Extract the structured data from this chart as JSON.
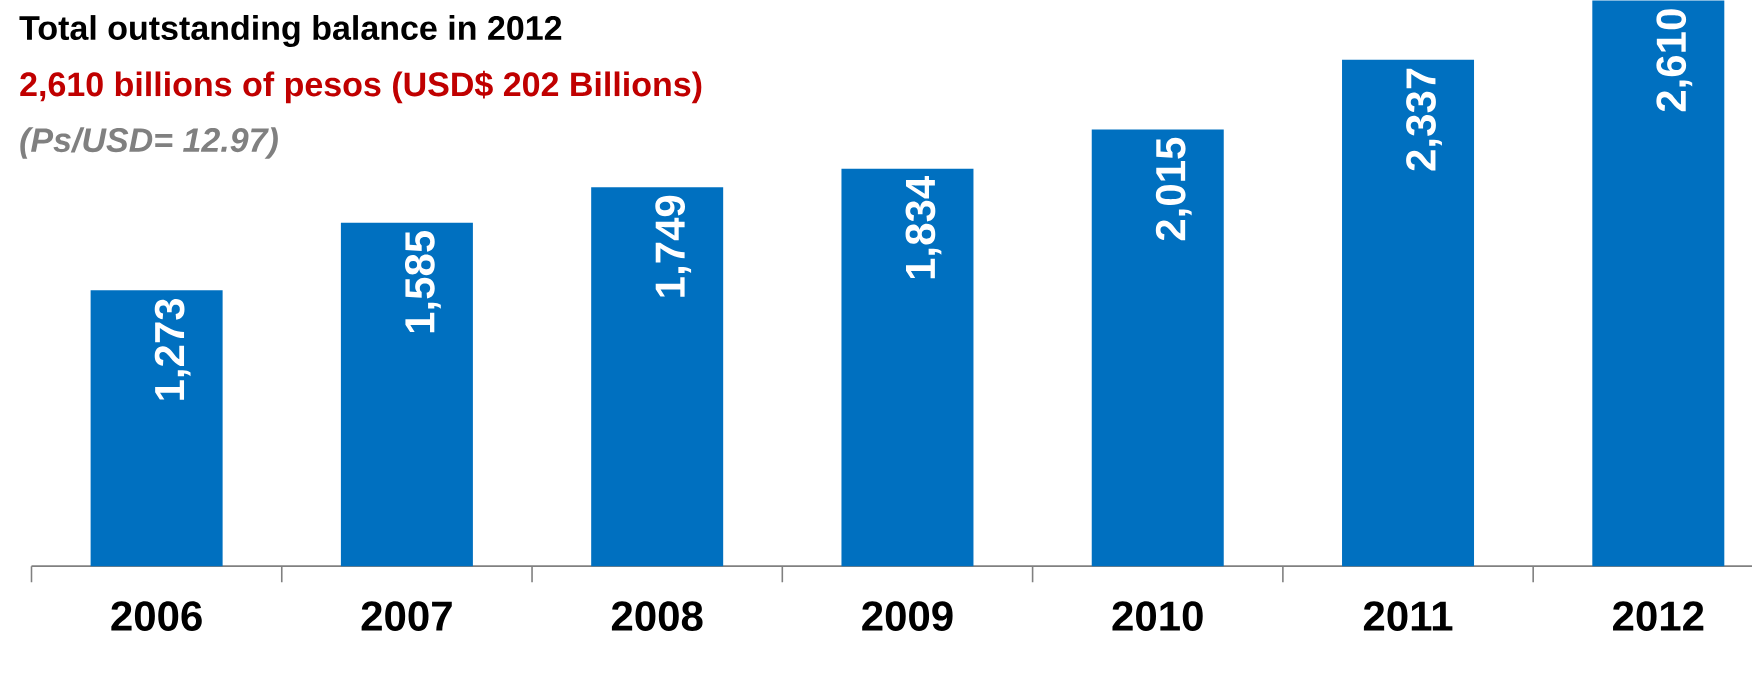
{
  "chart_data": {
    "type": "bar",
    "title": "Total outstanding balance in 2012",
    "subtitle": "2,610 billions of pesos (USD$ 202 Billions)",
    "annotations": [
      "(Ps/USD= 12.97)"
    ],
    "categories": [
      "2006",
      "2007",
      "2008",
      "2009",
      "2010",
      "2011",
      "2012"
    ],
    "values": [
      1273,
      1585,
      1749,
      1834,
      2015,
      2337,
      2610
    ],
    "value_labels": [
      "1,273",
      "1,585",
      "1,749",
      "1,834",
      "2,015",
      "2,337",
      "2,610"
    ],
    "color": "#0070c0"
  }
}
